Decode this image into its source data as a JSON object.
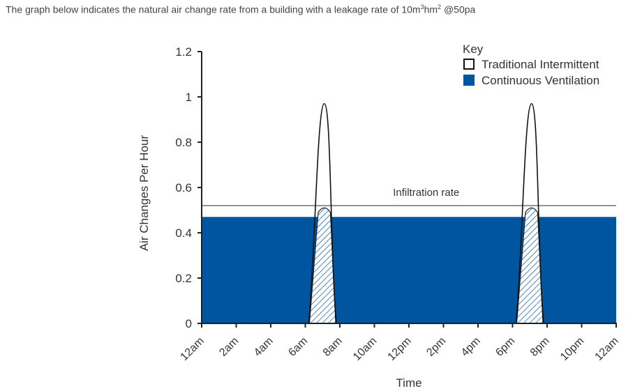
{
  "caption": {
    "prefix": "The graph below indicates the natural air change rate from a building with a leakage rate of 10m",
    "sup1": "3",
    "mid": "hm",
    "sup2": "2",
    "suffix": " @50pa"
  },
  "colors": {
    "continuous": "#0055a0",
    "axis": "#222222",
    "hatch": "#0055a0",
    "infiltration_line": "#555555"
  },
  "chart_data": {
    "type": "area",
    "title": "",
    "xlabel": "Time",
    "ylabel": "Air Changes Per Hour",
    "x_domain": [
      0,
      24
    ],
    "xlim": [
      0,
      24
    ],
    "ylim": [
      0,
      1.2
    ],
    "x_ticks": [
      0,
      2,
      4,
      6,
      8,
      10,
      12,
      14,
      16,
      18,
      20,
      22,
      24
    ],
    "x_tick_labels": [
      "12am",
      "2am",
      "4am",
      "6am",
      "8am",
      "10am",
      "12pm",
      "2pm",
      "4pm",
      "6pm",
      "8pm",
      "10pm",
      "12am"
    ],
    "y_ticks": [
      0,
      0.2,
      0.4,
      0.6,
      0.8,
      1,
      1.2
    ],
    "y_tick_labels": [
      "0",
      "0.2",
      "0.4",
      "0.6",
      "0.8",
      "1",
      "1.2"
    ],
    "infiltration": {
      "label": "Infiltration rate",
      "value": 0.52
    },
    "series": [
      {
        "name": "Continuous Ventilation",
        "style": "filled",
        "values": [
          [
            0,
            0.47
          ],
          [
            24,
            0.47
          ]
        ]
      },
      {
        "name": "Traditional Intermittent",
        "style": "outline",
        "peaks": [
          {
            "start": 6.2,
            "center": 7.1,
            "end": 7.8,
            "peak": 0.97
          },
          {
            "start": 18.2,
            "center": 19.1,
            "end": 19.8,
            "peak": 0.97
          }
        ]
      }
    ],
    "legend": {
      "title": "Key",
      "position": "top-right",
      "entries": [
        {
          "label": "Traditional Intermittent",
          "swatch": "outline"
        },
        {
          "label": "Continuous Ventilation",
          "swatch": "filled"
        }
      ]
    }
  }
}
